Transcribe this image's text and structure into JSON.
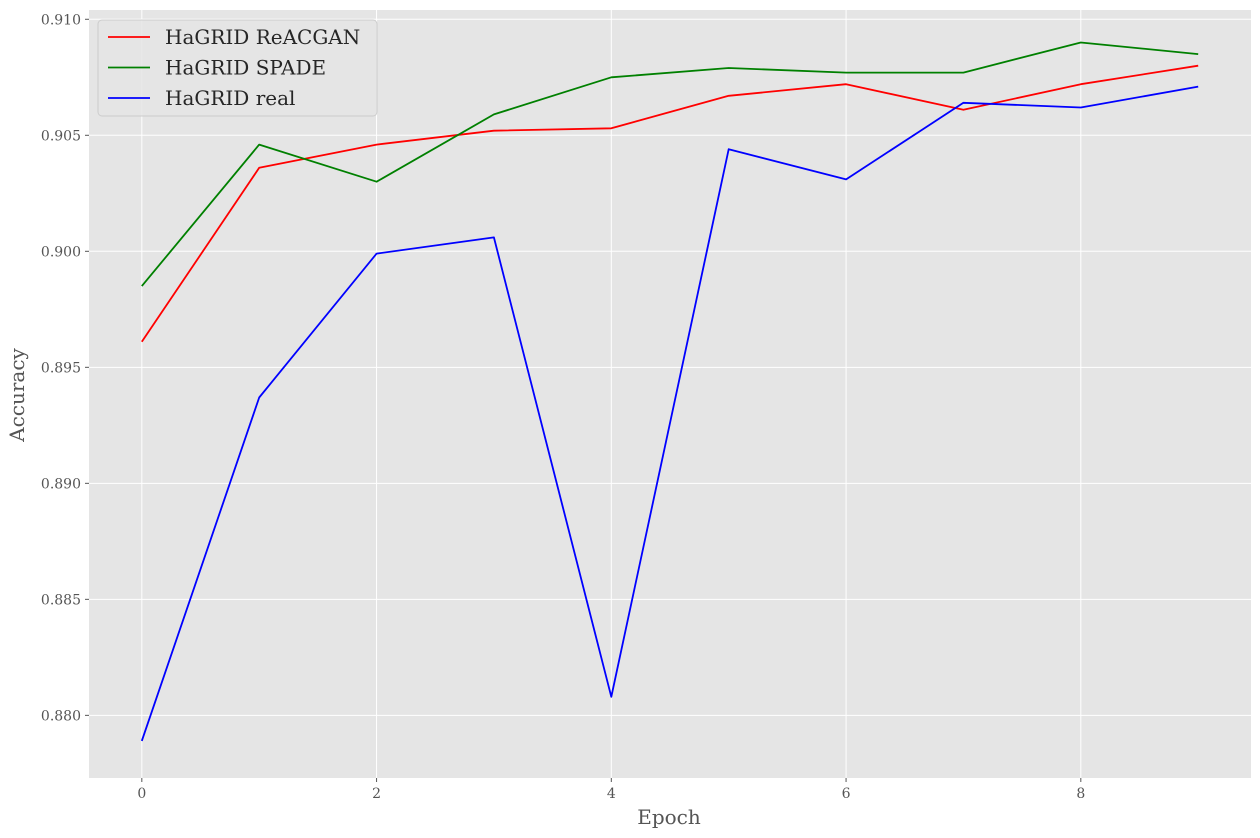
{
  "chart_data": {
    "type": "line",
    "title": "",
    "xlabel": "Epoch",
    "ylabel": "Accuracy",
    "x": [
      0,
      1,
      2,
      3,
      4,
      5,
      6,
      7,
      8,
      9
    ],
    "xlim": [
      -0.45,
      9.45
    ],
    "ylim": [
      0.8773,
      0.9104
    ],
    "xticks": [
      0,
      2,
      4,
      6,
      8
    ],
    "xtick_labels": [
      "0",
      "2",
      "4",
      "6",
      "8"
    ],
    "yticks": [
      0.88,
      0.885,
      0.89,
      0.895,
      0.9,
      0.905,
      0.91
    ],
    "ytick_labels": [
      "0.880",
      "0.885",
      "0.890",
      "0.895",
      "0.900",
      "0.905",
      "0.910"
    ],
    "grid": true,
    "legend_position": "top-left",
    "series": [
      {
        "name": "HaGRID ReACGAN",
        "color": "#ff0000",
        "values": [
          0.8961,
          0.9036,
          0.9046,
          0.9052,
          0.9053,
          0.9067,
          0.9072,
          0.9061,
          0.9072,
          0.908
        ]
      },
      {
        "name": "HaGRID SPADE",
        "color": "#008000",
        "values": [
          0.8985,
          0.9046,
          0.903,
          0.9059,
          0.9075,
          0.9079,
          0.9077,
          0.9077,
          0.909,
          0.9085
        ]
      },
      {
        "name": "HaGRID real",
        "color": "#0000ff",
        "values": [
          0.8789,
          0.8937,
          0.8999,
          0.9006,
          0.8808,
          0.9044,
          0.9031,
          0.9064,
          0.9062,
          0.9071
        ]
      }
    ]
  }
}
